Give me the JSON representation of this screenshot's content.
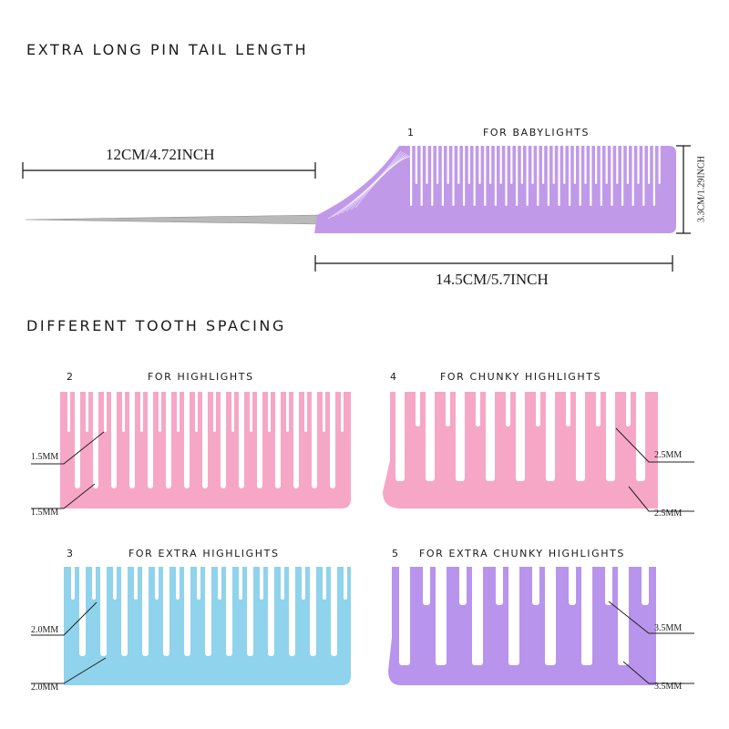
{
  "headings": {
    "tail_length": "EXTRA LONG PIN TAIL LENGTH",
    "tooth_spacing": "DIFFERENT TOOTH SPACING"
  },
  "colors": {
    "purple": "#c09ae9",
    "pink": "#f7a7c6",
    "blue": "#8fd3ec",
    "purple_light": "#b894ec",
    "pin": "#b9b9b9"
  },
  "combs": [
    {
      "number": "1",
      "label": "FOR BABYLIGHTS",
      "color": "purple",
      "measurements": []
    },
    {
      "number": "2",
      "label": "FOR HIGHLIGHTS",
      "color": "pink",
      "measurements": [
        "1.5MM",
        "1.5MM"
      ]
    },
    {
      "number": "4",
      "label": "FOR CHUNKY HIGHLIGHTS",
      "color": "pink",
      "measurements": [
        "2.5MM",
        "2.5MM"
      ]
    },
    {
      "number": "3",
      "label": "FOR EXTRA HIGHLIGHTS",
      "color": "blue",
      "measurements": [
        "2.0MM",
        "2.0MM"
      ]
    },
    {
      "number": "5",
      "label": "FOR EXTRA CHUNKY HIGHLIGHTS",
      "color": "purple_light",
      "measurements": [
        "3.5MM",
        "3.5MM"
      ]
    }
  ],
  "dimensions": {
    "tail": "12CM/4.72INCH",
    "comb_length": "14.5CM/5.7INCH",
    "comb_height": "3.3CM/1.29INCH"
  }
}
